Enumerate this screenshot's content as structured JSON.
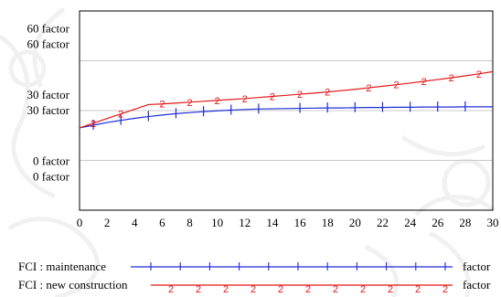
{
  "chart_data": {
    "type": "line",
    "x_ticks": [
      "0",
      "2",
      "4",
      "6",
      "8",
      "10",
      "12",
      "14",
      "16",
      "18",
      "20",
      "22",
      "24",
      "26",
      "28",
      "30"
    ],
    "xlim": [
      0,
      30
    ],
    "ylim": [
      -15,
      75
    ],
    "grid": "horizontal",
    "y_tick_labels": [
      {
        "value": 60,
        "lines": [
          "60  factor",
          "60  factor"
        ]
      },
      {
        "value": 30,
        "lines": [
          "30  factor",
          "30  factor"
        ]
      },
      {
        "value": 0,
        "lines": [
          "0  factor",
          "0  factor"
        ]
      }
    ],
    "series": [
      {
        "name": "FCI : maintenance",
        "unit": "factor",
        "color": "#1f2bd8",
        "marker": "tick",
        "x": [
          0,
          1,
          2,
          3,
          4,
          5,
          6,
          7,
          8,
          9,
          10,
          11,
          12,
          13,
          14,
          15,
          16,
          17,
          18,
          19,
          20,
          21,
          22,
          23,
          24,
          25,
          26,
          27,
          28,
          29,
          30
        ],
        "values": [
          22.2,
          23.4,
          24.6,
          25.6,
          26.5,
          27.3,
          28.0,
          28.6,
          29.1,
          29.5,
          29.9,
          30.2,
          30.5,
          30.7,
          30.8,
          30.9,
          31.0,
          31.1,
          31.2,
          31.2,
          31.3,
          31.4,
          31.4,
          31.5,
          31.5,
          31.6,
          31.6,
          31.6,
          31.7,
          31.7,
          31.7
        ],
        "marker_x": [
          1,
          3,
          5,
          7,
          9,
          11,
          13,
          16,
          18,
          20,
          22,
          24,
          26,
          28
        ]
      },
      {
        "name": "FCI : new construction",
        "unit": "factor",
        "color": "#e21818",
        "marker": "2",
        "x": [
          0,
          1,
          2,
          3,
          4,
          5,
          6,
          7,
          8,
          9,
          10,
          11,
          12,
          13,
          14,
          15,
          16,
          17,
          18,
          19,
          20,
          21,
          22,
          23,
          24,
          25,
          26,
          27,
          28,
          29,
          30
        ],
        "values": [
          22.2,
          24.3,
          26.4,
          28.5,
          30.6,
          32.7,
          33.0,
          33.4,
          33.8,
          34.2,
          34.6,
          35.0,
          35.4,
          35.9,
          36.4,
          36.9,
          37.4,
          37.9,
          38.4,
          39.0,
          39.6,
          40.3,
          41.0,
          41.7,
          42.4,
          43.2,
          44.0,
          44.8,
          45.7,
          46.6,
          47.6
        ],
        "marker_x": [
          1,
          3,
          6,
          8,
          10,
          12,
          14,
          16,
          18,
          21,
          23,
          25,
          27,
          29
        ]
      }
    ]
  }
}
